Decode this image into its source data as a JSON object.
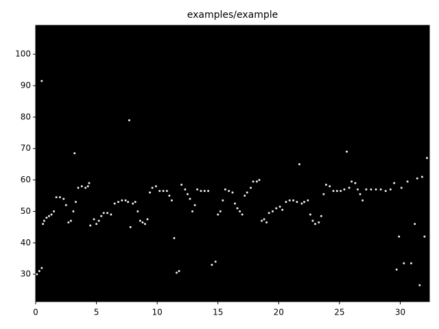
{
  "chart_data": {
    "type": "scatter",
    "title": "examples/example",
    "color": "#f4e8f8",
    "background": "#000000",
    "xlim": [
      0,
      32.4
    ],
    "ylim": [
      21.3,
      109.2
    ],
    "xticks": [
      0,
      5,
      10,
      15,
      20,
      25,
      30
    ],
    "yticks": [
      30,
      40,
      50,
      60,
      70,
      80,
      90,
      100
    ],
    "x": [
      0.1,
      0.3,
      0.5,
      0.6,
      0.7,
      0.9,
      1.1,
      1.3,
      1.5,
      1.7,
      2.0,
      2.3,
      2.5,
      2.7,
      2.9,
      3.1,
      3.3,
      3.5,
      3.8,
      4.1,
      4.3,
      4.4,
      4.5,
      4.8,
      5.0,
      5.2,
      5.4,
      5.6,
      5.9,
      6.2,
      6.5,
      6.8,
      7.1,
      7.4,
      7.6,
      7.8,
      8.0,
      8.2,
      8.4,
      8.6,
      8.8,
      9.0,
      9.2,
      9.4,
      9.6,
      9.9,
      10.2,
      10.5,
      10.8,
      11.0,
      11.2,
      11.4,
      11.6,
      11.8,
      12.0,
      12.3,
      12.5,
      12.7,
      12.9,
      13.1,
      13.3,
      13.6,
      13.9,
      14.2,
      14.5,
      14.8,
      15.0,
      15.2,
      15.4,
      15.6,
      15.9,
      16.2,
      16.4,
      16.6,
      16.8,
      17.0,
      17.2,
      17.4,
      17.7,
      17.9,
      18.2,
      18.4,
      18.6,
      18.8,
      19.0,
      19.2,
      19.5,
      19.8,
      20.1,
      20.3,
      20.6,
      20.9,
      21.2,
      21.5,
      21.7,
      21.9,
      22.1,
      22.4,
      22.6,
      22.8,
      23.0,
      23.3,
      23.5,
      23.7,
      23.9,
      24.2,
      24.5,
      24.8,
      25.1,
      25.4,
      25.6,
      25.8,
      26.0,
      26.3,
      26.5,
      26.7,
      26.9,
      27.2,
      27.6,
      28.0,
      28.4,
      28.8,
      29.2,
      29.5,
      29.7,
      29.9,
      30.1,
      30.3,
      30.6,
      30.9,
      31.2,
      31.4,
      31.6,
      31.8,
      32.0,
      32.2,
      0.5,
      7.7,
      3.2
    ],
    "y": [
      30,
      31,
      32,
      46,
      47,
      48,
      48.5,
      49,
      50,
      54.5,
      54.5,
      54,
      52,
      46.5,
      47,
      50,
      53,
      57.5,
      58,
      57.5,
      58,
      59,
      45.5,
      47.5,
      46,
      47,
      48.5,
      49.5,
      49.5,
      49,
      52.5,
      53,
      53.5,
      53.5,
      53,
      45,
      52.5,
      53,
      50,
      47,
      46.5,
      46,
      47.5,
      56,
      57.5,
      58,
      56.5,
      56.5,
      56.5,
      55,
      53.5,
      41.5,
      30.5,
      31,
      58.5,
      57,
      55.5,
      54,
      50,
      52,
      57,
      56.5,
      56.5,
      56.5,
      33,
      34,
      49,
      50,
      53.5,
      57,
      56.5,
      56,
      52.5,
      51,
      50,
      49,
      55,
      56,
      57.5,
      59.5,
      59.5,
      60,
      47,
      47.5,
      46.5,
      49.5,
      50,
      51,
      51.5,
      50.5,
      53,
      53.5,
      53.5,
      53,
      65,
      52.5,
      53,
      53.5,
      49,
      47,
      46,
      46.5,
      48.5,
      55.5,
      58.5,
      58,
      56.5,
      56.5,
      56.5,
      57,
      69,
      57.5,
      59.5,
      59,
      57,
      55.5,
      53.5,
      57,
      57,
      57,
      57,
      56.5,
      57,
      59,
      31.5,
      42,
      57.5,
      33.5,
      59.5,
      33.5,
      46,
      60.5,
      26.5,
      61,
      42,
      67,
      91.5,
      79,
      68.5
    ]
  }
}
